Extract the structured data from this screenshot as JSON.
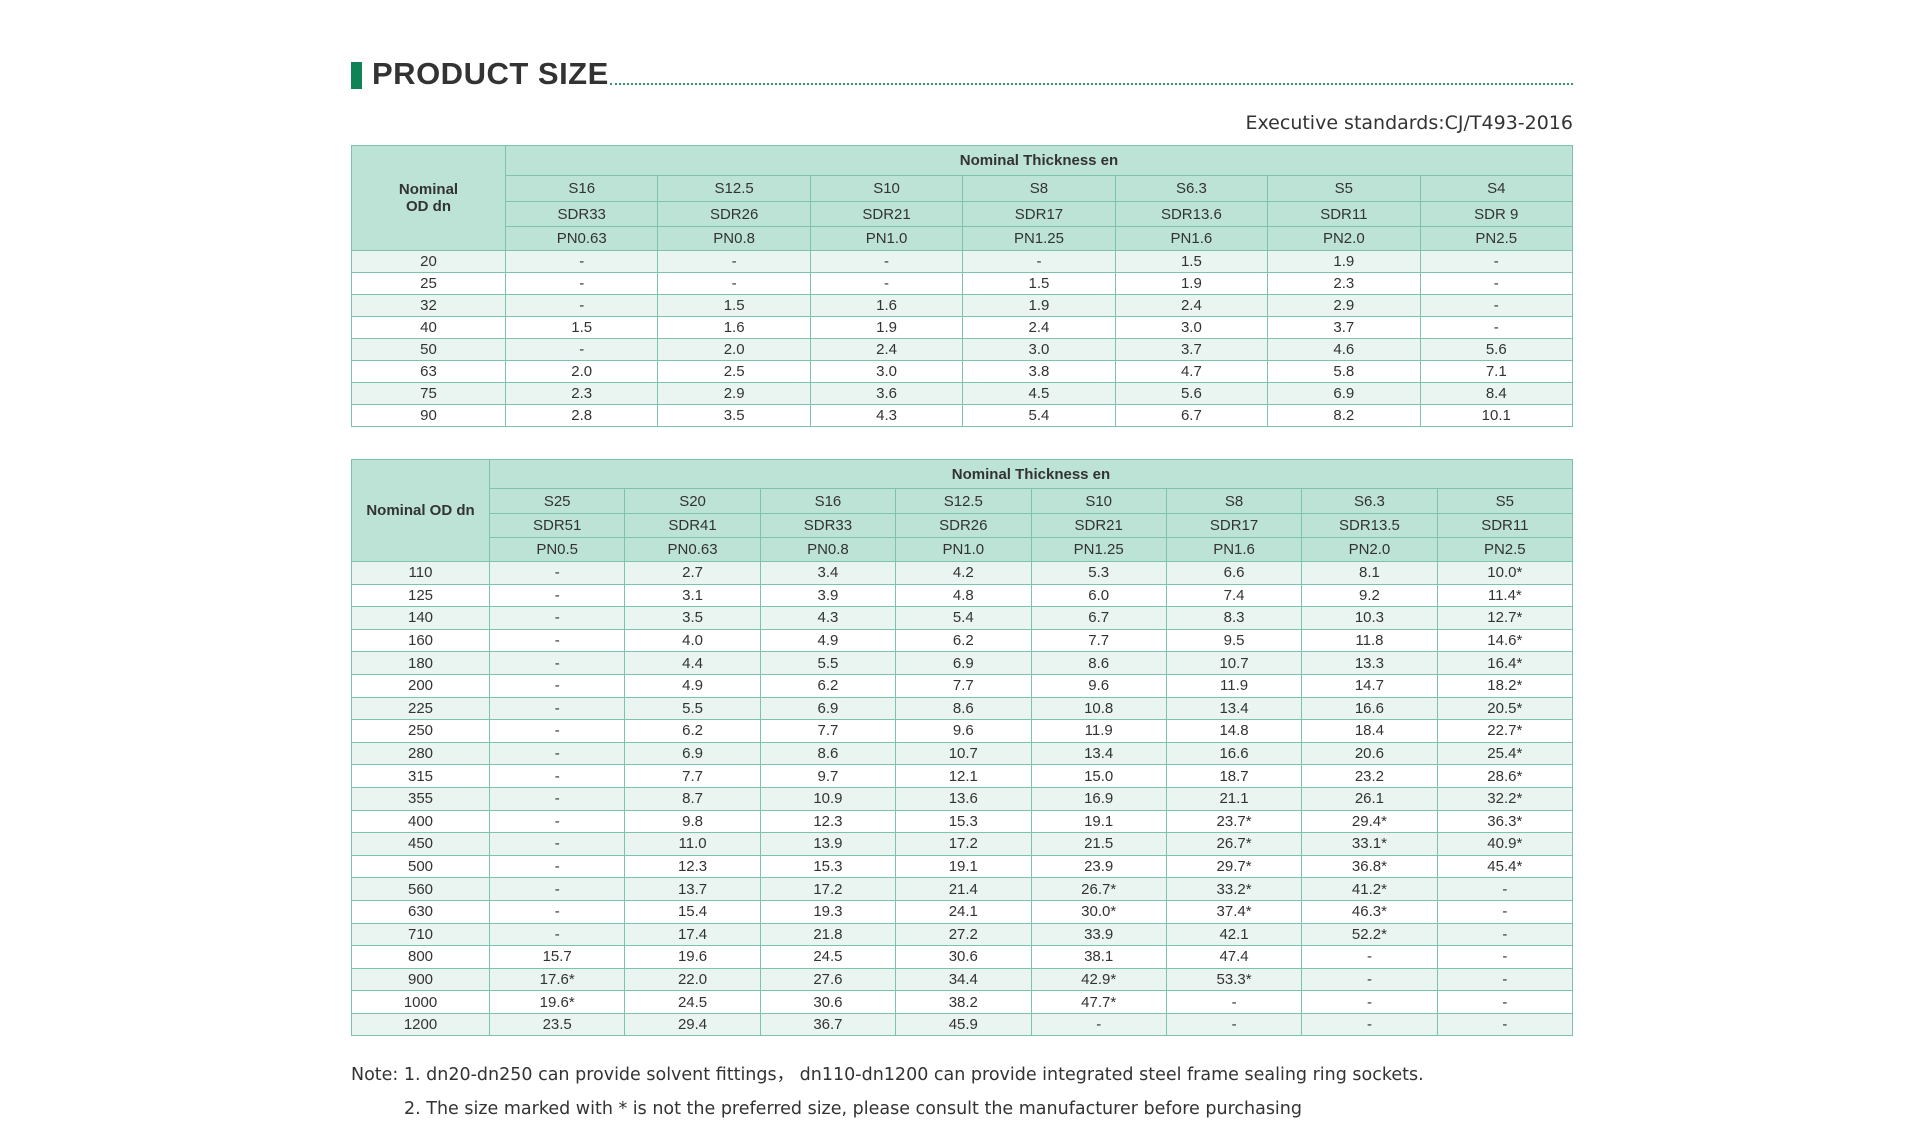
{
  "page": {
    "title": "PRODUCT SIZE",
    "standard": "Executive standards:CJ/T493-2016",
    "colors": {
      "accent": "#0f8356",
      "header_bg": "#bde3d6",
      "border": "#7cc4a8",
      "alt_row": "#eaf5f2"
    }
  },
  "table1": {
    "od_header": "Nominal\nOD dn",
    "group_header": "Nominal Thickness en",
    "s_series": [
      "S16",
      "S12.5",
      "S10",
      "S8",
      "S6.3",
      "S5",
      "S4"
    ],
    "sdr": [
      "SDR33",
      "SDR26",
      "SDR21",
      "SDR17",
      "SDR13.6",
      "SDR11",
      "SDR 9"
    ],
    "pn": [
      "PN0.63",
      "PN0.8",
      "PN1.0",
      "PN1.25",
      "PN1.6",
      "PN2.0",
      "PN2.5"
    ],
    "rows": [
      [
        "20",
        "-",
        "-",
        "-",
        "-",
        "1.5",
        "1.9",
        "-"
      ],
      [
        "25",
        "-",
        "-",
        "-",
        "1.5",
        "1.9",
        "2.3",
        "-"
      ],
      [
        "32",
        "-",
        "1.5",
        "1.6",
        "1.9",
        "2.4",
        "2.9",
        "-"
      ],
      [
        "40",
        "1.5",
        "1.6",
        "1.9",
        "2.4",
        "3.0",
        "3.7",
        "-"
      ],
      [
        "50",
        "-",
        "2.0",
        "2.4",
        "3.0",
        "3.7",
        "4.6",
        "5.6"
      ],
      [
        "63",
        "2.0",
        "2.5",
        "3.0",
        "3.8",
        "4.7",
        "5.8",
        "7.1"
      ],
      [
        "75",
        "2.3",
        "2.9",
        "3.6",
        "4.5",
        "5.6",
        "6.9",
        "8.4"
      ],
      [
        "90",
        "2.8",
        "3.5",
        "4.3",
        "5.4",
        "6.7",
        "8.2",
        "10.1"
      ]
    ]
  },
  "table2": {
    "od_header": "Nominal OD dn",
    "group_header": "Nominal Thickness en",
    "s_series": [
      "S25",
      "S20",
      "S16",
      "S12.5",
      "S10",
      "S8",
      "S6.3",
      "S5"
    ],
    "sdr": [
      "SDR51",
      "SDR41",
      "SDR33",
      "SDR26",
      "SDR21",
      "SDR17",
      "SDR13.5",
      "SDR11"
    ],
    "pn": [
      "PN0.5",
      "PN0.63",
      "PN0.8",
      "PN1.0",
      "PN1.25",
      "PN1.6",
      "PN2.0",
      "PN2.5"
    ],
    "rows": [
      [
        "110",
        "-",
        "2.7",
        "3.4",
        "4.2",
        "5.3",
        "6.6",
        "8.1",
        "10.0*"
      ],
      [
        "125",
        "-",
        "3.1",
        "3.9",
        "4.8",
        "6.0",
        "7.4",
        "9.2",
        "11.4*"
      ],
      [
        "140",
        "-",
        "3.5",
        "4.3",
        "5.4",
        "6.7",
        "8.3",
        "10.3",
        "12.7*"
      ],
      [
        "160",
        "-",
        "4.0",
        "4.9",
        "6.2",
        "7.7",
        "9.5",
        "11.8",
        "14.6*"
      ],
      [
        "180",
        "-",
        "4.4",
        "5.5",
        "6.9",
        "8.6",
        "10.7",
        "13.3",
        "16.4*"
      ],
      [
        "200",
        "-",
        "4.9",
        "6.2",
        "7.7",
        "9.6",
        "11.9",
        "14.7",
        "18.2*"
      ],
      [
        "225",
        "-",
        "5.5",
        "6.9",
        "8.6",
        "10.8",
        "13.4",
        "16.6",
        "20.5*"
      ],
      [
        "250",
        "-",
        "6.2",
        "7.7",
        "9.6",
        "11.9",
        "14.8",
        "18.4",
        "22.7*"
      ],
      [
        "280",
        "-",
        "6.9",
        "8.6",
        "10.7",
        "13.4",
        "16.6",
        "20.6",
        "25.4*"
      ],
      [
        "315",
        "-",
        "7.7",
        "9.7",
        "12.1",
        "15.0",
        "18.7",
        "23.2",
        "28.6*"
      ],
      [
        "355",
        "-",
        "8.7",
        "10.9",
        "13.6",
        "16.9",
        "21.1",
        "26.1",
        "32.2*"
      ],
      [
        "400",
        "-",
        "9.8",
        "12.3",
        "15.3",
        "19.1",
        "23.7*",
        "29.4*",
        "36.3*"
      ],
      [
        "450",
        "-",
        "11.0",
        "13.9",
        "17.2",
        "21.5",
        "26.7*",
        "33.1*",
        "40.9*"
      ],
      [
        "500",
        "-",
        "12.3",
        "15.3",
        "19.1",
        "23.9",
        "29.7*",
        "36.8*",
        "45.4*"
      ],
      [
        "560",
        "-",
        "13.7",
        "17.2",
        "21.4",
        "26.7*",
        "33.2*",
        "41.2*",
        "-"
      ],
      [
        "630",
        "-",
        "15.4",
        "19.3",
        "24.1",
        "30.0*",
        "37.4*",
        "46.3*",
        "-"
      ],
      [
        "710",
        "-",
        "17.4",
        "21.8",
        "27.2",
        "33.9",
        "42.1",
        "52.2*",
        "-"
      ],
      [
        "800",
        "15.7",
        "19.6",
        "24.5",
        "30.6",
        "38.1",
        "47.4",
        "-",
        "-"
      ],
      [
        "900",
        "17.6*",
        "22.0",
        "27.6",
        "34.4",
        "42.9*",
        "53.3*",
        "-",
        "-"
      ],
      [
        "1000",
        "19.6*",
        "24.5",
        "30.6",
        "38.2",
        "47.7*",
        "-",
        "-",
        "-"
      ],
      [
        "1200",
        "23.5",
        "29.4",
        "36.7",
        "45.9",
        "-",
        "-",
        "-",
        "-"
      ]
    ]
  },
  "notes": {
    "note1": "Note: 1. dn20-dn250 can provide solvent fittings， dn110-dn1200 can provide integrated steel frame sealing ring sockets.",
    "note2": "2. The size marked with * is not the preferred size, please consult the manufacturer before purchasing"
  }
}
